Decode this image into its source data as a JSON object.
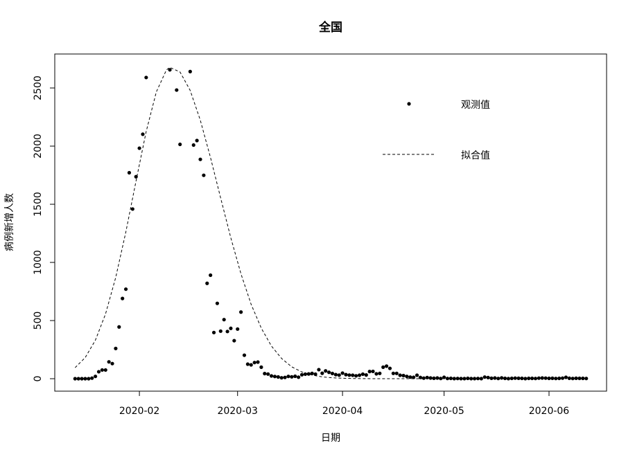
{
  "chart_data": {
    "type": "scatter",
    "title": "全国",
    "x_label": "日期",
    "y_label": "病例新增人数",
    "legend": "topright",
    "xlim": [
      7,
      170
    ],
    "xticks": [
      {
        "value": 32,
        "label": "2020-02"
      },
      {
        "value": 61,
        "label": "2020-03"
      },
      {
        "value": 92,
        "label": "2020-04"
      },
      {
        "value": 122,
        "label": "2020-05"
      },
      {
        "value": 153,
        "label": "2020-06"
      }
    ],
    "ylim": [
      -107,
      2792
    ],
    "yticks": [
      0,
      500,
      1000,
      1500,
      2000,
      2500
    ],
    "series": [
      {
        "name": "观测值",
        "type": "scatter",
        "color": "#000000",
        "x": [
          13,
          14,
          15,
          16,
          17,
          18,
          19,
          20,
          21,
          22,
          23,
          24,
          25,
          26,
          27,
          28,
          29,
          30,
          31,
          32,
          33,
          34,
          41,
          43,
          44,
          47,
          48,
          49,
          50,
          51,
          52,
          53,
          54,
          55,
          56,
          57,
          58,
          59,
          60,
          61,
          62,
          63,
          64,
          65,
          66,
          67,
          68,
          69,
          70,
          71,
          72,
          73,
          74,
          75,
          76,
          77,
          78,
          79,
          80,
          81,
          82,
          83,
          84,
          85,
          86,
          87,
          88,
          89,
          90,
          91,
          92,
          93,
          94,
          95,
          96,
          97,
          98,
          99,
          100,
          101,
          102,
          103,
          104,
          105,
          106,
          107,
          108,
          109,
          110,
          111,
          112,
          113,
          114,
          115,
          116,
          117,
          118,
          119,
          120,
          121,
          122,
          123,
          124,
          125,
          126,
          127,
          128,
          129,
          130,
          131,
          132,
          133,
          134,
          135,
          136,
          137,
          138,
          139,
          140,
          141,
          142,
          143,
          144,
          145,
          146,
          147,
          148,
          149,
          150,
          151,
          152,
          153,
          154,
          155,
          156,
          157,
          158,
          159,
          160,
          161,
          162,
          163,
          164
        ],
        "values": [
          0,
          0,
          0,
          0,
          0,
          5,
          20,
          60,
          75,
          75,
          145,
          130,
          260,
          445,
          690,
          770,
          1771,
          1459,
          1737,
          1982,
          2102,
          2590,
          2656,
          2482,
          2015,
          2641,
          2009,
          2048,
          1886,
          1749,
          820,
          890,
          397,
          648,
          409,
          508,
          406,
          433,
          327,
          427,
          573,
          202,
          125,
          119,
          139,
          143,
          99,
          44,
          40,
          24,
          19,
          15,
          8,
          11,
          20,
          16,
          21,
          13,
          34,
          39,
          41,
          46,
          39,
          78,
          47,
          67,
          55,
          45,
          35,
          31,
          48,
          35,
          31,
          30,
          25,
          30,
          39,
          32,
          62,
          63,
          42,
          46,
          99,
          108,
          89,
          46,
          46,
          30,
          27,
          20,
          14,
          12,
          30,
          11,
          5,
          10,
          6,
          4,
          6,
          2,
          12,
          2,
          3,
          1,
          2,
          1,
          1,
          3,
          1,
          1,
          2,
          1,
          14,
          10,
          4,
          6,
          2,
          7,
          3,
          1,
          3,
          5,
          4,
          3,
          1,
          3,
          3,
          2,
          5,
          6,
          5,
          3,
          4,
          2,
          3,
          5,
          12,
          4,
          2,
          4,
          3,
          3,
          2
        ]
      },
      {
        "name": "拟合值",
        "type": "line",
        "color": "#000000",
        "dash": "dashed",
        "x": [
          13,
          16,
          19,
          22,
          25,
          28,
          31,
          34,
          37,
          40,
          41,
          44,
          47,
          50,
          53,
          56,
          59,
          62,
          65,
          68,
          71,
          74,
          77,
          80,
          83,
          86,
          89,
          92,
          95,
          98,
          101,
          104,
          110,
          116,
          122
        ],
        "values": [
          95,
          182,
          331,
          557,
          870,
          1262,
          1699,
          2125,
          2466,
          2656,
          2677,
          2637,
          2479,
          2222,
          1902,
          1554,
          1212,
          902,
          640,
          435,
          281,
          174,
          102,
          58,
          31,
          16,
          8,
          4,
          2,
          1,
          0,
          0,
          0,
          0,
          0
        ]
      }
    ]
  }
}
